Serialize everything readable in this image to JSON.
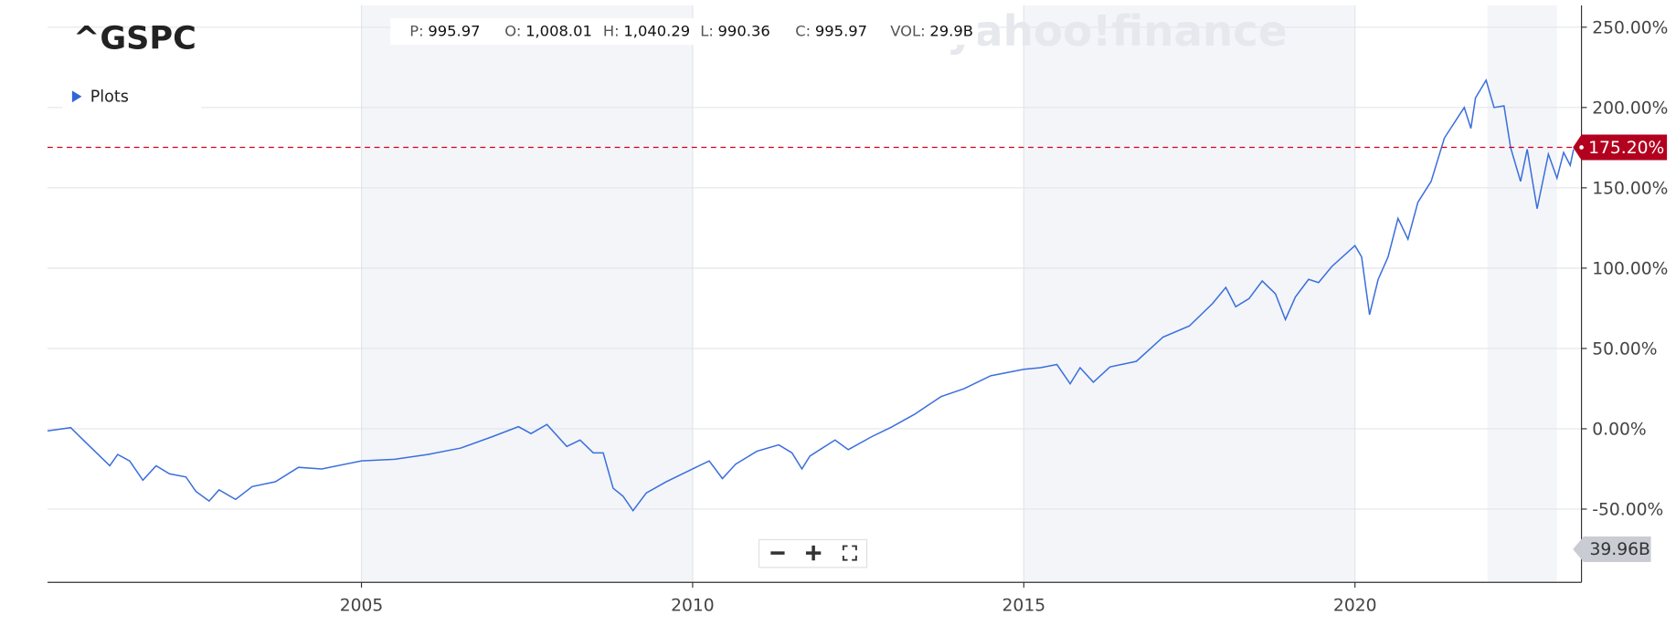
{
  "chart_data": {
    "type": "line",
    "title": "^GSPC",
    "plots_label": "Plots",
    "watermark": "yahoo!finance",
    "ohlc": [
      {
        "label": "P:",
        "value": "995.97"
      },
      {
        "label": "O:",
        "value": "1,008.01"
      },
      {
        "label": "H:",
        "value": "1,040.29"
      },
      {
        "label": "L:",
        "value": "990.36"
      },
      {
        "label": "C:",
        "value": "995.97"
      },
      {
        "label": "VOL:",
        "value": "29.9B"
      }
    ],
    "color": "#3b6fdc",
    "x": [
      2000.26,
      2000.61,
      2000.84,
      2001.2,
      2001.32,
      2001.5,
      2001.7,
      2001.9,
      2002.1,
      2002.35,
      2002.5,
      2002.7,
      2002.85,
      2003.1,
      2003.35,
      2003.7,
      2004.05,
      2004.4,
      2005,
      2005.5,
      2006,
      2006.5,
      2006.97,
      2007.37,
      2007.56,
      2007.8,
      2008.1,
      2008.3,
      2008.5,
      2008.65,
      2008.8,
      2008.95,
      2009.1,
      2009.3,
      2009.6,
      2010,
      2010.25,
      2010.45,
      2010.65,
      2010.97,
      2011.3,
      2011.5,
      2011.65,
      2011.77,
      2012.15,
      2012.35,
      2012.7,
      2013,
      2013.35,
      2013.75,
      2014.1,
      2014.5,
      2015,
      2015.25,
      2015.5,
      2015.7,
      2015.85,
      2016.05,
      2016.3,
      2016.7,
      2017.1,
      2017.5,
      2017.85,
      2018.05,
      2018.2,
      2018.4,
      2018.6,
      2018.8,
      2018.95,
      2019.1,
      2019.3,
      2019.45,
      2019.65,
      2020,
      2020.1,
      2020.22,
      2020.35,
      2020.5,
      2020.65,
      2020.8,
      2020.95,
      2021.15,
      2021.35,
      2021.65,
      2021.75,
      2021.82,
      2021.98,
      2022.1,
      2022.25,
      2022.35,
      2022.5,
      2022.6,
      2022.75,
      2022.92,
      2023.05,
      2023.15,
      2023.25,
      2023.3
    ],
    "values": [
      -1.3,
      0.7,
      -8.6,
      -23,
      -16,
      -20,
      -32,
      -23,
      -28,
      -30,
      -39,
      -45,
      -38,
      -44,
      -36,
      -33,
      -24,
      -25,
      -20,
      -19,
      -16,
      -12,
      -5,
      1.3,
      -3,
      2.7,
      -11,
      -7,
      -15,
      -15,
      -37,
      -42,
      -51,
      -40,
      -33,
      -25,
      -20,
      -31,
      -22,
      -14,
      -10,
      -15,
      -25,
      -17,
      -7,
      -13,
      -5,
      1,
      9,
      20,
      25,
      33,
      37,
      38,
      40,
      28,
      38,
      29,
      38.5,
      42,
      57,
      64,
      78,
      88,
      76,
      81,
      92,
      84,
      68,
      82,
      93,
      91,
      101,
      114,
      107,
      71,
      93,
      107,
      131,
      118,
      141,
      154,
      181,
      200,
      187,
      206,
      217,
      200,
      201,
      175,
      154,
      174,
      137,
      171,
      156,
      172,
      164,
      174
    ],
    "current": {
      "value": 175.2,
      "label": "175.20%"
    },
    "volume_label": "39.96B",
    "bands": [
      [
        2005,
        2010
      ],
      [
        2015,
        2020
      ],
      [
        2022,
        2023.05
      ]
    ],
    "xlim": [
      2000.26,
      2023.42
    ],
    "ylim": [
      -95.6,
      263.6
    ],
    "xticks": [
      2005,
      2010,
      2015,
      2020
    ],
    "yticks": [
      {
        "value": -50,
        "label": "-50.00%"
      },
      {
        "value": 0,
        "label": "0.00%"
      },
      {
        "value": 50,
        "label": "50.00%"
      },
      {
        "value": 100,
        "label": "100.00%"
      },
      {
        "value": 150,
        "label": "150.00%"
      },
      {
        "value": 200,
        "label": "200.00%"
      },
      {
        "value": 250,
        "label": "250.00%"
      }
    ],
    "grid": true
  }
}
